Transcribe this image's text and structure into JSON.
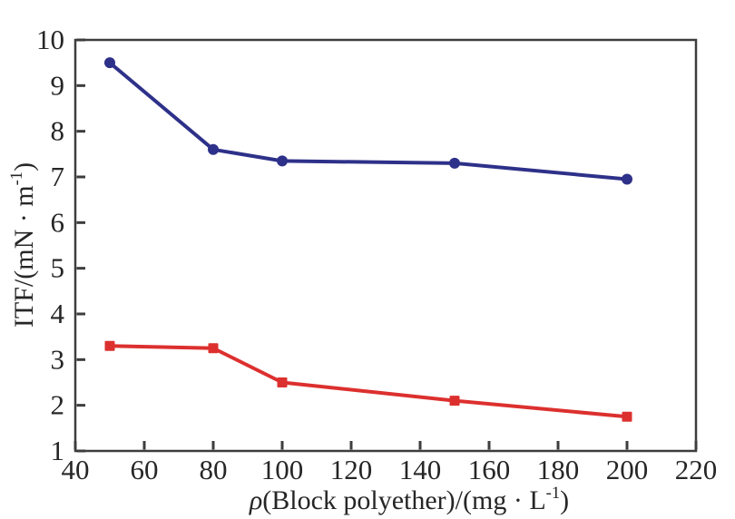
{
  "chart_data": {
    "type": "line",
    "title": "",
    "xlabel": "ρ(Block polyether)/(mg · L⁻¹)",
    "ylabel": "ITF/(mN · m⁻¹)",
    "xlim": [
      40,
      220
    ],
    "ylim": [
      1,
      10
    ],
    "xticks": [
      40,
      60,
      80,
      100,
      120,
      140,
      160,
      180,
      200,
      220
    ],
    "yticks": [
      1,
      2,
      3,
      4,
      5,
      6,
      7,
      8,
      9,
      10
    ],
    "grid": false,
    "legend": "none",
    "x": [
      50,
      80,
      100,
      150,
      200
    ],
    "series": [
      {
        "name": "blue-circles",
        "marker": "circle",
        "color": "#2e3189",
        "values": [
          9.5,
          7.6,
          7.35,
          7.3,
          6.95
        ]
      },
      {
        "name": "red-squares",
        "marker": "square",
        "color": "#dc302e",
        "values": [
          3.3,
          3.25,
          2.5,
          2.1,
          1.75
        ]
      }
    ],
    "axis_color": "#3d3d3d",
    "text_color": "#262626"
  }
}
